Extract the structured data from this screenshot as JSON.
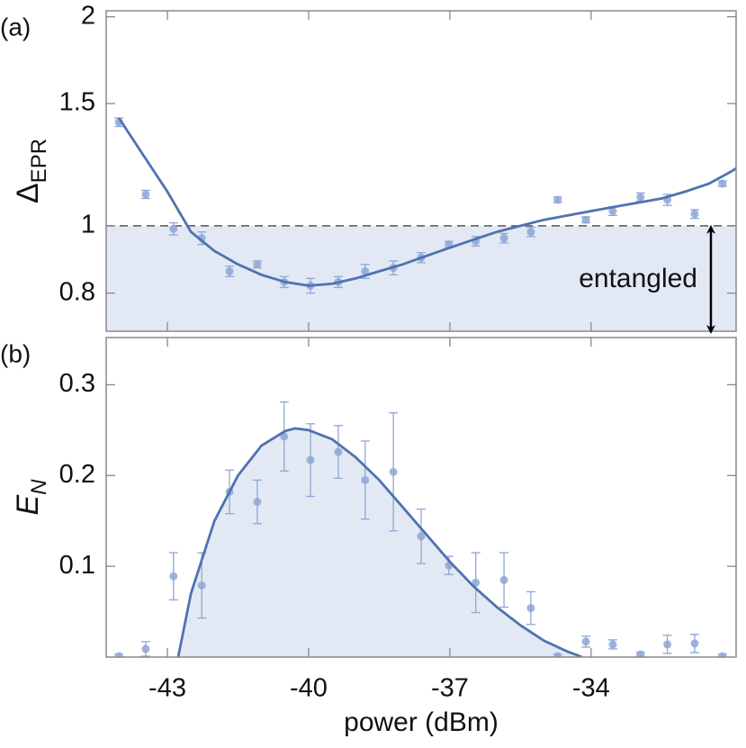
{
  "chart_data": [
    {
      "type": "scatter",
      "panel_label": "(a)",
      "ylabel": "Δ",
      "ylabel_sub": "EPR",
      "annotation": "entangled",
      "xlim": [
        -44.3,
        -30.92
      ],
      "ylim": [
        0.705,
        2.04
      ],
      "log_y": true,
      "yticks": [
        0.8,
        1,
        1.5,
        2
      ],
      "threshold": 1,
      "shade_color": "#e3e9f4",
      "series": [
        {
          "color": "#8ea7d5",
          "x": [
            -44.03,
            -43.46,
            -42.87,
            -42.27,
            -41.68,
            -41.09,
            -40.52,
            -39.96,
            -39.37,
            -38.8,
            -38.2,
            -37.61,
            -37.02,
            -36.45,
            -35.85,
            -35.28,
            -34.71,
            -34.11,
            -33.54,
            -32.95,
            -32.38,
            -31.8,
            -31.21
          ],
          "values": [
            1.41,
            1.11,
            0.99,
            0.96,
            0.86,
            0.88,
            0.83,
            0.82,
            0.83,
            0.86,
            0.87,
            0.9,
            0.94,
            0.95,
            0.96,
            0.98,
            1.09,
            1.02,
            1.05,
            1.1,
            1.09,
            1.04,
            1.15
          ],
          "errors": [
            0.02,
            0.015,
            0.02,
            0.02,
            0.015,
            0.01,
            0.015,
            0.02,
            0.015,
            0.02,
            0.02,
            0.015,
            0.01,
            0.015,
            0.015,
            0.015,
            0.01,
            0.01,
            0.015,
            0.015,
            0.02,
            0.015,
            0.01
          ]
        }
      ],
      "fit": {
        "color": "#4f72b0",
        "x": [
          -44.03,
          -43.5,
          -43,
          -42.5,
          -42,
          -41.5,
          -41,
          -40.5,
          -40,
          -39.5,
          -39,
          -38.5,
          -38,
          -37.5,
          -37,
          -36.5,
          -36,
          -35.5,
          -35,
          -34.5,
          -34,
          -33.5,
          -33,
          -32.5,
          -32,
          -31.5,
          -31,
          -30.92
        ],
        "values": [
          1.43,
          1.26,
          1.12,
          0.98,
          0.92,
          0.88,
          0.85,
          0.83,
          0.82,
          0.825,
          0.84,
          0.86,
          0.88,
          0.905,
          0.93,
          0.955,
          0.98,
          1.0,
          1.02,
          1.035,
          1.05,
          1.065,
          1.08,
          1.095,
          1.12,
          1.15,
          1.2,
          1.21
        ]
      }
    },
    {
      "type": "scatter",
      "panel_label": "(b)",
      "ylabel": "E",
      "ylabel_sub": "N",
      "xlabel": "power (dBm)",
      "xlim": [
        -44.3,
        -30.92
      ],
      "ylim": [
        0,
        0.352
      ],
      "log_y": false,
      "xticks": [
        -43,
        -40,
        -37,
        -34
      ],
      "yticks": [
        0.1,
        0.2,
        0.3
      ],
      "shade_color": "#e3e9f4",
      "series": [
        {
          "color": "#8ea7d5",
          "x": [
            -44.03,
            -43.46,
            -42.87,
            -42.27,
            -41.68,
            -41.09,
            -40.52,
            -39.96,
            -39.37,
            -38.8,
            -38.2,
            -37.61,
            -37.02,
            -36.45,
            -35.85,
            -35.28,
            -34.71,
            -34.11,
            -33.54,
            -32.95,
            -32.38,
            -31.8,
            -31.21
          ],
          "values": [
            0.001,
            0.009,
            0.089,
            0.079,
            0.182,
            0.171,
            0.243,
            0.217,
            0.226,
            0.195,
            0.204,
            0.133,
            0.101,
            0.082,
            0.085,
            0.054,
            0.001,
            0.017,
            0.014,
            0.003,
            0.014,
            0.015,
            0.001
          ],
          "errors": [
            0.002,
            0.008,
            0.026,
            0.036,
            0.024,
            0.024,
            0.038,
            0.04,
            0.029,
            0.043,
            0.065,
            0.03,
            0.01,
            0.033,
            0.03,
            0.018,
            0.002,
            0.006,
            0.005,
            0.002,
            0.01,
            0.01,
            0.002
          ]
        }
      ],
      "fit": {
        "color": "#4f72b0",
        "x": [
          -42.77,
          -42.5,
          -42,
          -41.5,
          -41,
          -40.5,
          -40.29,
          -40,
          -39.5,
          -39,
          -38.5,
          -38,
          -37.5,
          -37,
          -36.5,
          -36,
          -35.5,
          -35,
          -34.5,
          -34.19
        ],
        "values": [
          0,
          0.07,
          0.15,
          0.2,
          0.233,
          0.249,
          0.252,
          0.25,
          0.24,
          0.22,
          0.195,
          0.165,
          0.135,
          0.105,
          0.078,
          0.055,
          0.035,
          0.018,
          0.006,
          0
        ]
      }
    }
  ]
}
